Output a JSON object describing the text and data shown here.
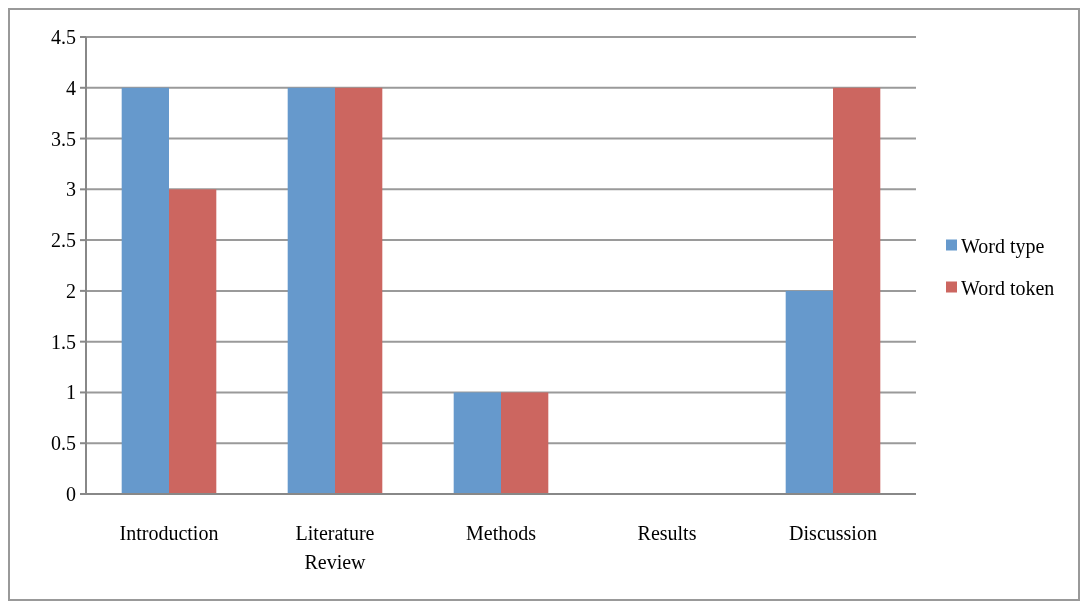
{
  "chart_data": {
    "type": "bar",
    "categories": [
      "Introduction",
      "Literature Review",
      "Methods",
      "Results",
      "Discussion"
    ],
    "series": [
      {
        "name": "Word type",
        "color": "#6699cc",
        "values": [
          4,
          4,
          1,
          0,
          2
        ]
      },
      {
        "name": "Word token",
        "color": "#cc6660",
        "values": [
          3,
          4,
          1,
          0,
          4
        ]
      }
    ],
    "ylim": [
      0,
      4.5
    ],
    "yticks": [
      0,
      0.5,
      1,
      1.5,
      2,
      2.5,
      3,
      3.5,
      4,
      4.5
    ],
    "grid": "y",
    "legend": "right"
  }
}
